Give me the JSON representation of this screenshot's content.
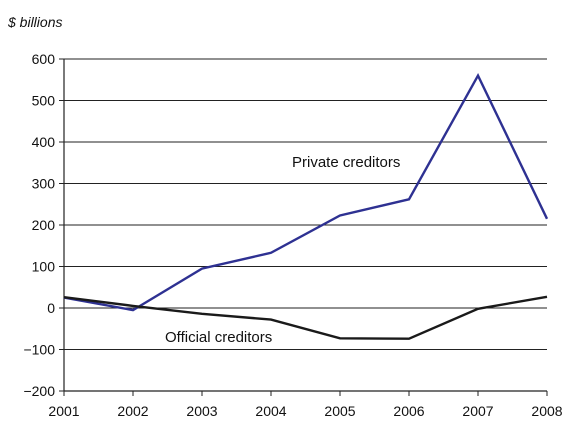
{
  "chart_data": {
    "type": "line",
    "ylabel": "$ billions",
    "x": [
      "2001",
      "2002",
      "2003",
      "2004",
      "2005",
      "2006",
      "2007",
      "2008"
    ],
    "y_ticks": [
      "600",
      "500",
      "400",
      "300",
      "200",
      "100",
      "0",
      "−100",
      "−200"
    ],
    "ylim": [
      -200,
      600
    ],
    "grid": true,
    "series": [
      {
        "name": "Private creditors",
        "color": "#2e3192",
        "values": [
          25,
          -5,
          95,
          133,
          223,
          262,
          560,
          215
        ]
      },
      {
        "name": "Official creditors",
        "color": "#1a1a1a",
        "values": [
          26,
          5,
          -14,
          -28,
          -73,
          -74,
          -2,
          27
        ]
      }
    ]
  }
}
